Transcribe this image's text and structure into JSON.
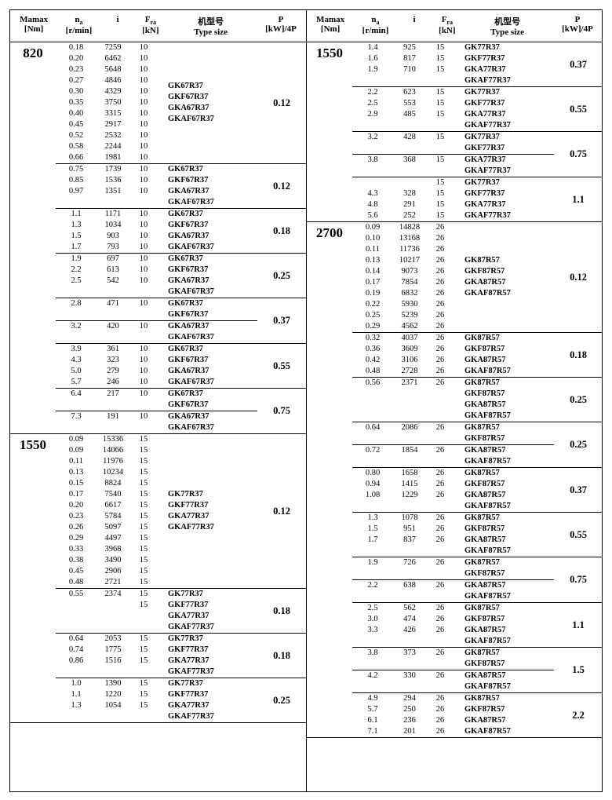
{
  "headers": {
    "mamax": "Mamax\n[Nm]",
    "na": "nₐ\n[r/min]",
    "i": "i",
    "fra": "Fᵣₐ\n[kN]",
    "type": "机型号\nType size",
    "p": "P\n[kW]/4P"
  },
  "left": [
    {
      "mamax": "820",
      "blocks": [
        {
          "p": "0.12",
          "segments": [
            {
              "rows": [
                [
                  "0.18",
                  "7259",
                  "10"
                ],
                [
                  "0.20",
                  "6462",
                  "10"
                ],
                [
                  "0.23",
                  "5648",
                  "10"
                ],
                [
                  "0.27",
                  "4846",
                  "10"
                ],
                [
                  "0.30",
                  "4329",
                  "10"
                ],
                [
                  "0.35",
                  "3750",
                  "10"
                ],
                [
                  "0.40",
                  "3315",
                  "10"
                ],
                [
                  "0.45",
                  "2917",
                  "10"
                ],
                [
                  "0.52",
                  "2532",
                  "10"
                ],
                [
                  "0.58",
                  "2244",
                  "10"
                ],
                [
                  "0.66",
                  "1981",
                  "10"
                ]
              ],
              "types": [
                "GK67R37",
                "GKF67R37",
                "GKA67R37",
                "GKAF67R37"
              ]
            }
          ]
        },
        {
          "p": "0.12",
          "segments": [
            {
              "rows": [
                [
                  "0.75",
                  "1739",
                  "10"
                ],
                [
                  "0.85",
                  "1536",
                  "10"
                ],
                [
                  "0.97",
                  "1351",
                  "10"
                ]
              ],
              "types": [
                "GK67R37",
                "GKF67R37",
                "GKA67R37",
                "GKAF67R37"
              ]
            }
          ]
        },
        {
          "p": "0.18",
          "segments": [
            {
              "rows": [
                [
                  "1.1",
                  "1171",
                  "10"
                ],
                [
                  "1.3",
                  "1034",
                  "10"
                ],
                [
                  "1.5",
                  "903",
                  "10"
                ],
                [
                  "1.7",
                  "793",
                  "10"
                ]
              ],
              "types": [
                "GK67R37",
                "GKF67R37",
                "GKA67R37",
                "GKAF67R37"
              ]
            }
          ]
        },
        {
          "p": "0.25",
          "segments": [
            {
              "rows": [
                [
                  "1.9",
                  "697",
                  "10"
                ],
                [
                  "2.2",
                  "613",
                  "10"
                ],
                [
                  "2.5",
                  "542",
                  "10"
                ]
              ],
              "types": [
                "GK67R37",
                "GKF67R37",
                "GKA67R37",
                "GKAF67R37"
              ]
            }
          ]
        },
        {
          "p": "0.37",
          "segments": [
            {
              "rows": [
                [
                  "2.8",
                  "471",
                  "10"
                ]
              ],
              "types": [
                "GK67R37",
                "GKF67R37"
              ]
            },
            {
              "rows": [
                [
                  "3.2",
                  "420",
                  "10"
                ]
              ],
              "types": [
                "GKA67R37",
                "GKAF67R37"
              ]
            }
          ]
        },
        {
          "p": "0.55",
          "segments": [
            {
              "rows": [
                [
                  "3.9",
                  "361",
                  "10"
                ],
                [
                  "4.3",
                  "323",
                  "10"
                ],
                [
                  "5.0",
                  "279",
                  "10"
                ],
                [
                  "5.7",
                  "246",
                  "10"
                ]
              ],
              "types": [
                "GK67R37",
                "GKF67R37",
                "GKA67R37",
                "GKAF67R37"
              ]
            }
          ]
        },
        {
          "p": "0.75",
          "segments": [
            {
              "rows": [
                [
                  "6.4",
                  "217",
                  "10"
                ]
              ],
              "types": [
                "GK67R37",
                "GKF67R37"
              ]
            },
            {
              "rows": [
                [
                  "7.3",
                  "191",
                  "10"
                ]
              ],
              "types": [
                "GKA67R37",
                "GKAF67R37"
              ]
            }
          ]
        }
      ]
    },
    {
      "mamax": "1550",
      "blocks": [
        {
          "p": "0.12",
          "segments": [
            {
              "rows": [
                [
                  "0.09",
                  "15336",
                  "15"
                ],
                [
                  "0.09",
                  "14066",
                  "15"
                ],
                [
                  "0.11",
                  "11976",
                  "15"
                ],
                [
                  "0.13",
                  "10234",
                  "15"
                ],
                [
                  "0.15",
                  "8824",
                  "15"
                ],
                [
                  "0.17",
                  "7540",
                  "15"
                ],
                [
                  "0.20",
                  "6617",
                  "15"
                ],
                [
                  "0.23",
                  "5784",
                  "15"
                ],
                [
                  "0.26",
                  "5097",
                  "15"
                ],
                [
                  "0.29",
                  "4497",
                  "15"
                ],
                [
                  "0.33",
                  "3968",
                  "15"
                ],
                [
                  "0.38",
                  "3490",
                  "15"
                ],
                [
                  "0.45",
                  "2906",
                  "15"
                ],
                [
                  "0.48",
                  "2721",
                  "15"
                ]
              ],
              "types": [
                "GK77R37",
                "GKF77R37",
                "GKA77R37",
                "GKAF77R37"
              ]
            }
          ]
        },
        {
          "p": "0.18",
          "segments": [
            {
              "rows": [
                [
                  "0.55",
                  "2374",
                  "15"
                ],
                [
                  "",
                  "",
                  "15"
                ]
              ],
              "types": [
                "GK77R37",
                "GKF77R37",
                "GKA77R37",
                "GKAF77R37"
              ]
            }
          ]
        },
        {
          "p": "0.18",
          "segments": [
            {
              "rows": [
                [
                  "0.64",
                  "2053",
                  "15"
                ],
                [
                  "0.74",
                  "1775",
                  "15"
                ],
                [
                  "0.86",
                  "1516",
                  "15"
                ]
              ],
              "types": [
                "GK77R37",
                "GKF77R37",
                "GKA77R37",
                "GKAF77R37"
              ]
            }
          ]
        },
        {
          "p": "0.25",
          "segments": [
            {
              "rows": [
                [
                  "1.0",
                  "1390",
                  "15"
                ],
                [
                  "1.1",
                  "1220",
                  "15"
                ],
                [
                  "1.3",
                  "1054",
                  "15"
                ]
              ],
              "types": [
                "GK77R37",
                "GKF77R37",
                "GKA77R37",
                "GKAF77R37"
              ]
            }
          ]
        }
      ]
    }
  ],
  "right": [
    {
      "mamax": "1550",
      "blocks": [
        {
          "p": "0.37",
          "segments": [
            {
              "rows": [
                [
                  "1.4",
                  "925",
                  "15"
                ],
                [
                  "1.6",
                  "817",
                  "15"
                ],
                [
                  "1.9",
                  "710",
                  "15"
                ]
              ],
              "types": [
                "GK77R37",
                "GKF77R37",
                "GKA77R37",
                "GKAF77R37"
              ]
            }
          ]
        },
        {
          "p": "0.55",
          "segments": [
            {
              "rows": [
                [
                  "2.2",
                  "623",
                  "15"
                ],
                [
                  "2.5",
                  "553",
                  "15"
                ],
                [
                  "2.9",
                  "485",
                  "15"
                ]
              ],
              "types": [
                "GK77R37",
                "GKF77R37",
                "GKA77R37",
                "GKAF77R37"
              ]
            }
          ]
        },
        {
          "p": "0.75",
          "segments": [
            {
              "rows": [
                [
                  "3.2",
                  "428",
                  "15"
                ]
              ],
              "types": [
                "GK77R37",
                "GKF77R37"
              ]
            },
            {
              "rows": [
                [
                  "3.8",
                  "368",
                  "15"
                ]
              ],
              "types": [
                "GKA77R37",
                "GKAF77R37"
              ]
            }
          ]
        },
        {
          "p": "1.1",
          "segments": [
            {
              "rows": [
                [
                  "",
                  "",
                  "15"
                ],
                [
                  "4.3",
                  "328",
                  "15"
                ],
                [
                  "4.8",
                  "291",
                  "15"
                ],
                [
                  "5.6",
                  "252",
                  "15"
                ]
              ],
              "types": [
                "GK77R37",
                "GKF77R37",
                "GKA77R37",
                "GKAF77R37"
              ]
            }
          ]
        }
      ]
    },
    {
      "mamax": "2700",
      "blocks": [
        {
          "p": "0.12",
          "segments": [
            {
              "rows": [
                [
                  "0.09",
                  "14828",
                  "26"
                ],
                [
                  "0.10",
                  "13168",
                  "26"
                ],
                [
                  "0.11",
                  "11736",
                  "26"
                ],
                [
                  "0.13",
                  "10217",
                  "26"
                ],
                [
                  "0.14",
                  "9073",
                  "26"
                ],
                [
                  "0.17",
                  "7854",
                  "26"
                ],
                [
                  "0.19",
                  "6832",
                  "26"
                ],
                [
                  "0.22",
                  "5930",
                  "26"
                ],
                [
                  "0.25",
                  "5239",
                  "26"
                ],
                [
                  "0.29",
                  "4562",
                  "26"
                ]
              ],
              "types": [
                "GK87R57",
                "GKF87R57",
                "GKA87R57",
                "GKAF87R57"
              ]
            }
          ]
        },
        {
          "p": "0.18",
          "segments": [
            {
              "rows": [
                [
                  "0.32",
                  "4037",
                  "26"
                ],
                [
                  "0.36",
                  "3609",
                  "26"
                ],
                [
                  "0.42",
                  "3106",
                  "26"
                ],
                [
                  "0.48",
                  "2728",
                  "26"
                ]
              ],
              "types": [
                "GK87R57",
                "GKF87R57",
                "GKA87R57",
                "GKAF87R57"
              ]
            }
          ]
        },
        {
          "p": "0.25",
          "segments": [
            {
              "rows": [
                [
                  "0.56",
                  "2371",
                  "26"
                ]
              ],
              "types": [
                "GK87R57",
                "GKF87R57",
                "GKA87R57",
                "GKAF87R57"
              ]
            }
          ]
        },
        {
          "p": "0.25",
          "segments": [
            {
              "rows": [
                [
                  "0.64",
                  "2086",
                  "26"
                ]
              ],
              "types": [
                "GK87R57",
                "GKF87R57"
              ]
            },
            {
              "rows": [
                [
                  "0.72",
                  "1854",
                  "26"
                ]
              ],
              "types": [
                "GKA87R57",
                "GKAF87R57"
              ]
            }
          ]
        },
        {
          "p": "0.37",
          "segments": [
            {
              "rows": [
                [
                  "0.80",
                  "1658",
                  "26"
                ],
                [
                  "0.94",
                  "1415",
                  "26"
                ],
                [
                  "1.08",
                  "1229",
                  "26"
                ]
              ],
              "types": [
                "GK87R57",
                "GKF87R57",
                "GKA87R57",
                "GKAF87R57"
              ]
            }
          ]
        },
        {
          "p": "0.55",
          "segments": [
            {
              "rows": [
                [
                  "1.3",
                  "1078",
                  "26"
                ],
                [
                  "1.5",
                  "951",
                  "26"
                ],
                [
                  "1.7",
                  "837",
                  "26"
                ]
              ],
              "types": [
                "GK87R57",
                "GKF87R57",
                "GKA87R57",
                "GKAF87R57"
              ]
            }
          ]
        },
        {
          "p": "0.75",
          "segments": [
            {
              "rows": [
                [
                  "1.9",
                  "726",
                  "26"
                ]
              ],
              "types": [
                "GK87R57",
                "GKF87R57"
              ]
            },
            {
              "rows": [
                [
                  "2.2",
                  "638",
                  "26"
                ]
              ],
              "types": [
                "GKA87R57",
                "GKAF87R57"
              ]
            }
          ]
        },
        {
          "p": "1.1",
          "segments": [
            {
              "rows": [
                [
                  "2.5",
                  "562",
                  "26"
                ],
                [
                  "3.0",
                  "474",
                  "26"
                ],
                [
                  "3.3",
                  "426",
                  "26"
                ]
              ],
              "types": [
                "GK87R57",
                "GKF87R57",
                "GKA87R57",
                "GKAF87R57"
              ]
            }
          ]
        },
        {
          "p": "1.5",
          "segments": [
            {
              "rows": [
                [
                  "3.8",
                  "373",
                  "26"
                ]
              ],
              "types": [
                "GK87R57",
                "GKF87R57"
              ]
            },
            {
              "rows": [
                [
                  "4.2",
                  "330",
                  "26"
                ]
              ],
              "types": [
                "GKA87R57",
                "GKAF87R57"
              ]
            }
          ]
        },
        {
          "p": "2.2",
          "segments": [
            {
              "rows": [
                [
                  "4.9",
                  "294",
                  "26"
                ],
                [
                  "5.7",
                  "250",
                  "26"
                ],
                [
                  "6.1",
                  "236",
                  "26"
                ],
                [
                  "7.1",
                  "201",
                  "26"
                ]
              ],
              "types": [
                "GK87R57",
                "GKF87R57",
                "GKA87R57",
                "GKAF87R57"
              ]
            }
          ]
        }
      ]
    }
  ]
}
